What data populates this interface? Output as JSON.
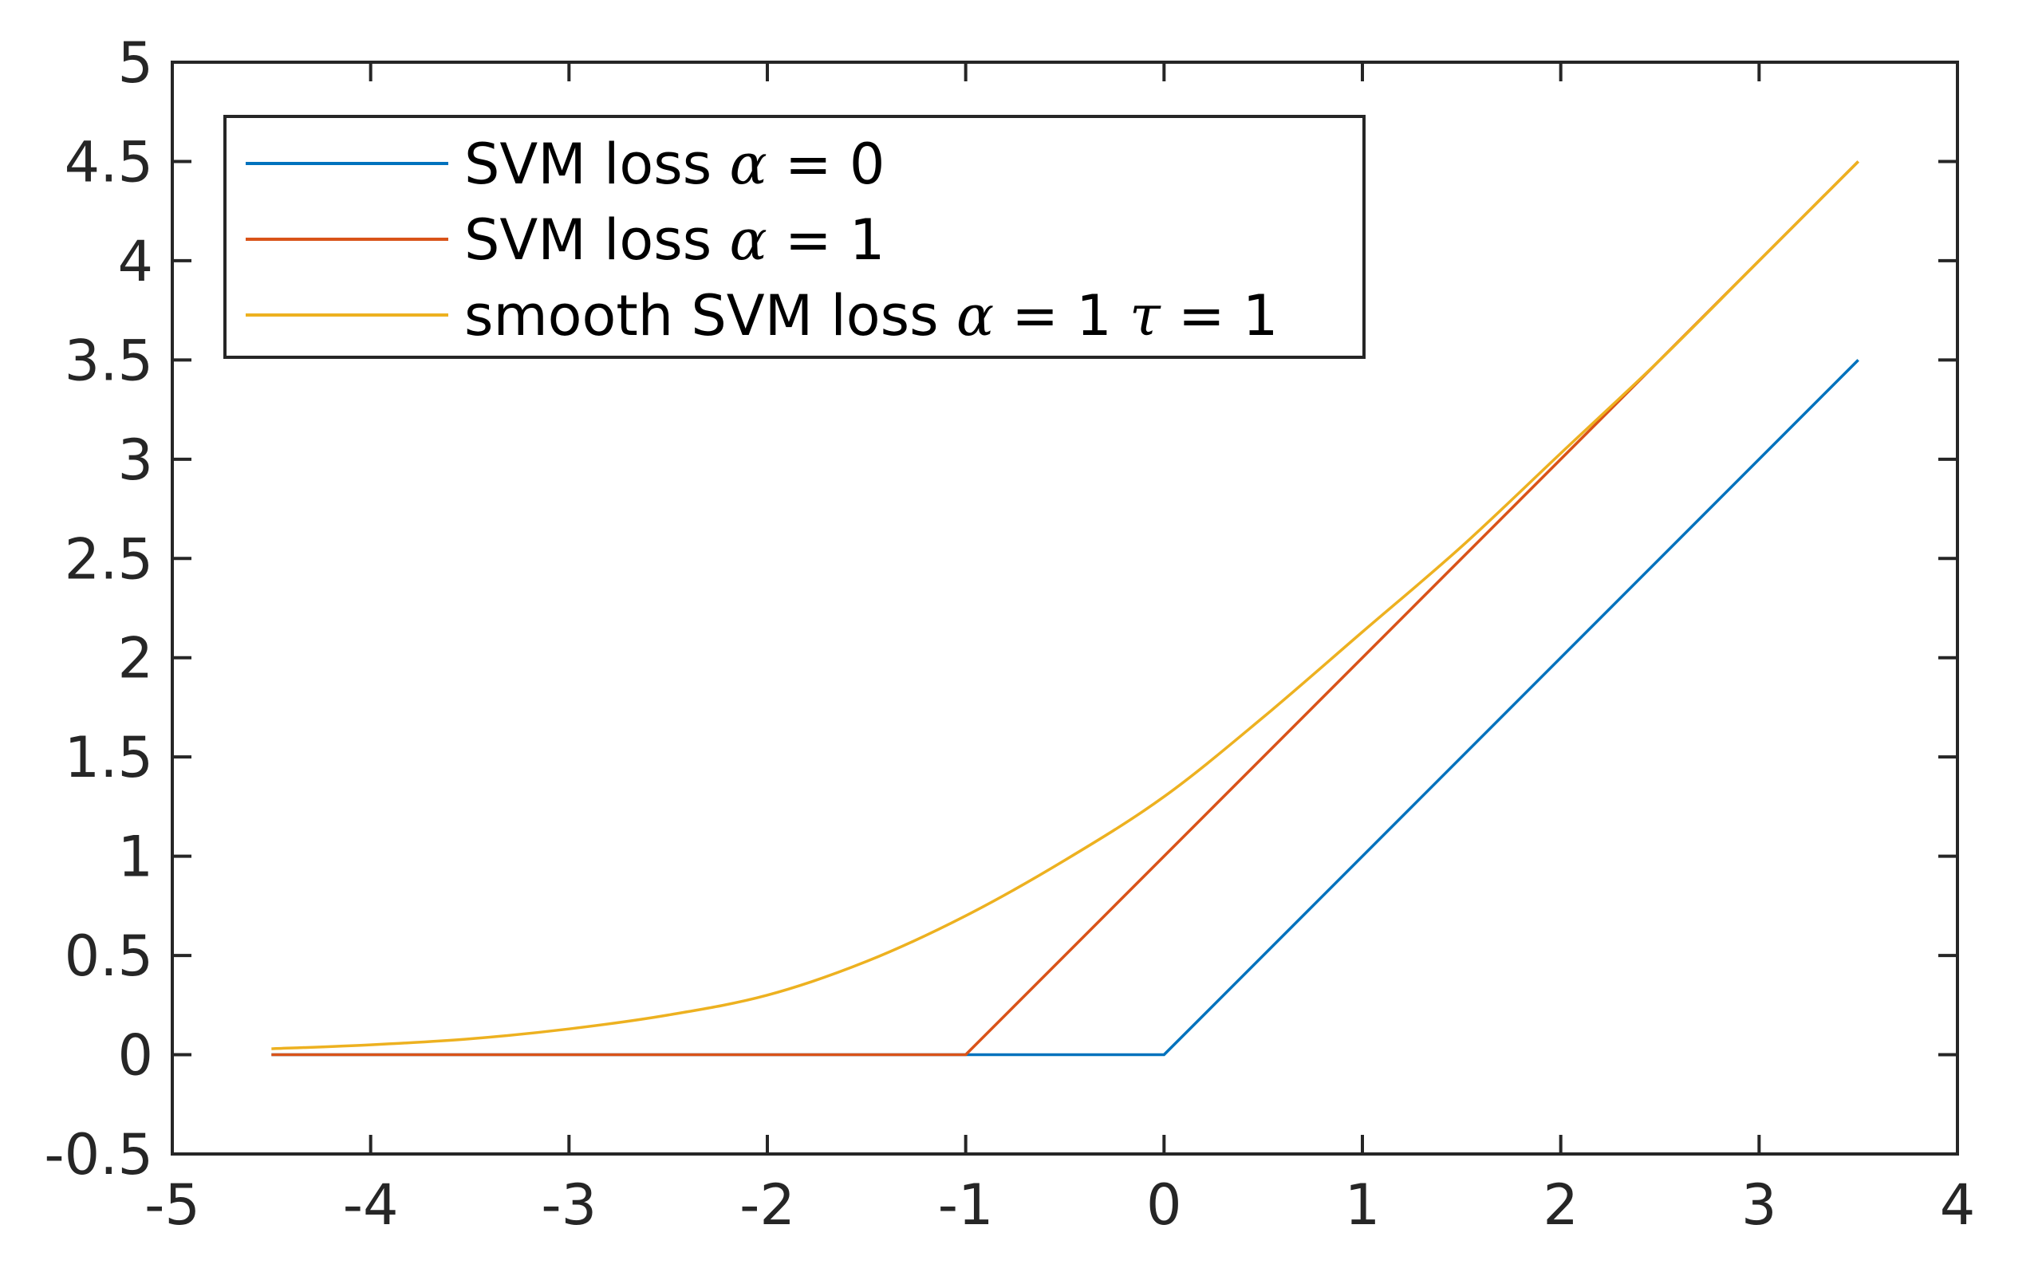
{
  "chart_data": {
    "type": "line",
    "title": "",
    "xlabel": "",
    "ylabel": "",
    "xlim": [
      -5,
      4
    ],
    "ylim": [
      -0.5,
      5
    ],
    "x_ticks": [
      "-5",
      "-4",
      "-3",
      "-2",
      "-1",
      "0",
      "1",
      "2",
      "3",
      "4"
    ],
    "y_ticks": [
      "-0.5",
      "0",
      "0.5",
      "1",
      "1.5",
      "2",
      "2.5",
      "3",
      "3.5",
      "4",
      "4.5",
      "5"
    ],
    "grid": false,
    "legend_position": "top-left",
    "series": [
      {
        "name": "SVM loss α = 0",
        "legend": {
          "prefix": "SVM loss ",
          "symbol": "α",
          "suffix": " = 0"
        },
        "color": "#0072BD",
        "x": [
          -4.5,
          0,
          3.5
        ],
        "y": [
          0,
          0,
          3.5
        ]
      },
      {
        "name": "SVM loss α = 1",
        "legend": {
          "prefix": "SVM loss ",
          "symbol": "α",
          "suffix": " = 1"
        },
        "color": "#D95319",
        "x": [
          -4.5,
          -1,
          3.5
        ],
        "y": [
          0,
          0,
          4.5
        ]
      },
      {
        "name": "smooth SVM loss α = 1 τ = 1",
        "legend": {
          "prefix": "smooth SVM loss ",
          "symbol": "α",
          "suffix": " = 1 ",
          "symbol2": "τ",
          "suffix2": " = 1"
        },
        "color": "#EDB120",
        "x": [
          -4.5,
          -4,
          -3.5,
          -3,
          -2.5,
          -2,
          -1.5,
          -1,
          -0.5,
          0,
          0.5,
          1,
          1.5,
          2,
          2.5,
          3,
          3.5
        ],
        "y": [
          0.03,
          0.05,
          0.08,
          0.13,
          0.2,
          0.3,
          0.47,
          0.7,
          0.98,
          1.3,
          1.7,
          2.13,
          2.56,
          3.03,
          3.5,
          4.0,
          4.5
        ]
      }
    ]
  }
}
